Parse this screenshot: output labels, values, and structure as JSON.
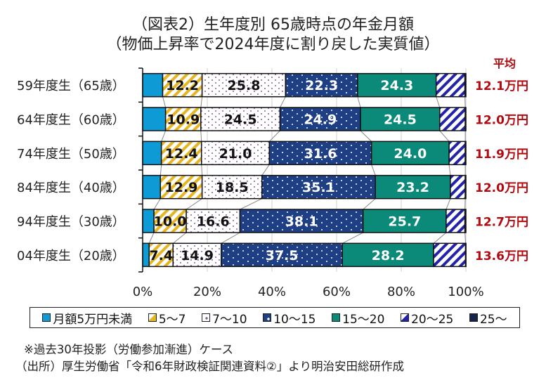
{
  "chart_data": {
    "type": "bar",
    "orientation": "horizontal",
    "stacked": "percent",
    "title": "（図表2）生年度別  65歳時点の年金月額",
    "subtitle": "（物価上昇率で2024年度に割り戻した実質値）",
    "xlabel": "",
    "ylabel": "",
    "xlim": [
      0,
      100
    ],
    "x_ticks": [
      "0%",
      "20%",
      "40%",
      "60%",
      "80%",
      "100%"
    ],
    "grid": true,
    "categories": [
      "59年度生（65歳）",
      "64年度生（60歳）",
      "74年度生（50歳）",
      "84年度生（40歳）",
      "94年度生（30歳）",
      "04年度生（20歳）"
    ],
    "series": [
      {
        "name": "月額5万円未満",
        "values": [
          6.2,
          7.1,
          5.8,
          5.5,
          3.5,
          2.0
        ],
        "show_labels": false,
        "color": "#0e9bd5",
        "pattern": "solid"
      },
      {
        "name": "5～7",
        "values": [
          12.2,
          10.9,
          12.4,
          12.9,
          10.0,
          7.4
        ],
        "show_labels": true,
        "color": "#e6b522",
        "pattern": "diag-stripe"
      },
      {
        "name": "7～10",
        "values": [
          25.8,
          24.5,
          21.0,
          18.5,
          16.6,
          14.9
        ],
        "show_labels": true,
        "color": "#8b5c9e",
        "pattern": "dots-on-white"
      },
      {
        "name": "10～15",
        "values": [
          22.3,
          24.9,
          31.6,
          35.1,
          38.1,
          37.5
        ],
        "show_labels": true,
        "color": "#1f3f85",
        "pattern": "white-dots"
      },
      {
        "name": "15～20",
        "values": [
          24.3,
          24.5,
          24.0,
          23.2,
          25.7,
          28.2
        ],
        "show_labels": true,
        "color": "#0b8a7a",
        "pattern": "solid"
      },
      {
        "name": "20～25",
        "values": [
          8.9,
          7.9,
          5.0,
          4.6,
          5.8,
          9.9
        ],
        "show_labels": false,
        "color": "#2222aa",
        "pattern": "diag-stripe"
      },
      {
        "name": "25～",
        "values": [
          0.3,
          0.2,
          0.2,
          0.2,
          0.3,
          0.1
        ],
        "show_labels": false,
        "color": "#14244a",
        "pattern": "solid"
      }
    ],
    "label_colors": [
      "#111111",
      "#111111",
      "#111111",
      "#ffffff",
      "#ffffff",
      "#111111",
      "#ffffff"
    ],
    "average_header": "平均",
    "averages": [
      "12.1万円",
      "12.0万円",
      "11.9万円",
      "12.0万円",
      "12.7万円",
      "13.6万円"
    ],
    "average_color": "#b00a10",
    "legend_position": "bottom",
    "series_lines": true
  },
  "notes": [
    "※過去30年投影（労働参加漸進）ケース",
    "（出所）厚生労働省「令和6年財政検証関連資料②」より明治安田総研作成"
  ]
}
